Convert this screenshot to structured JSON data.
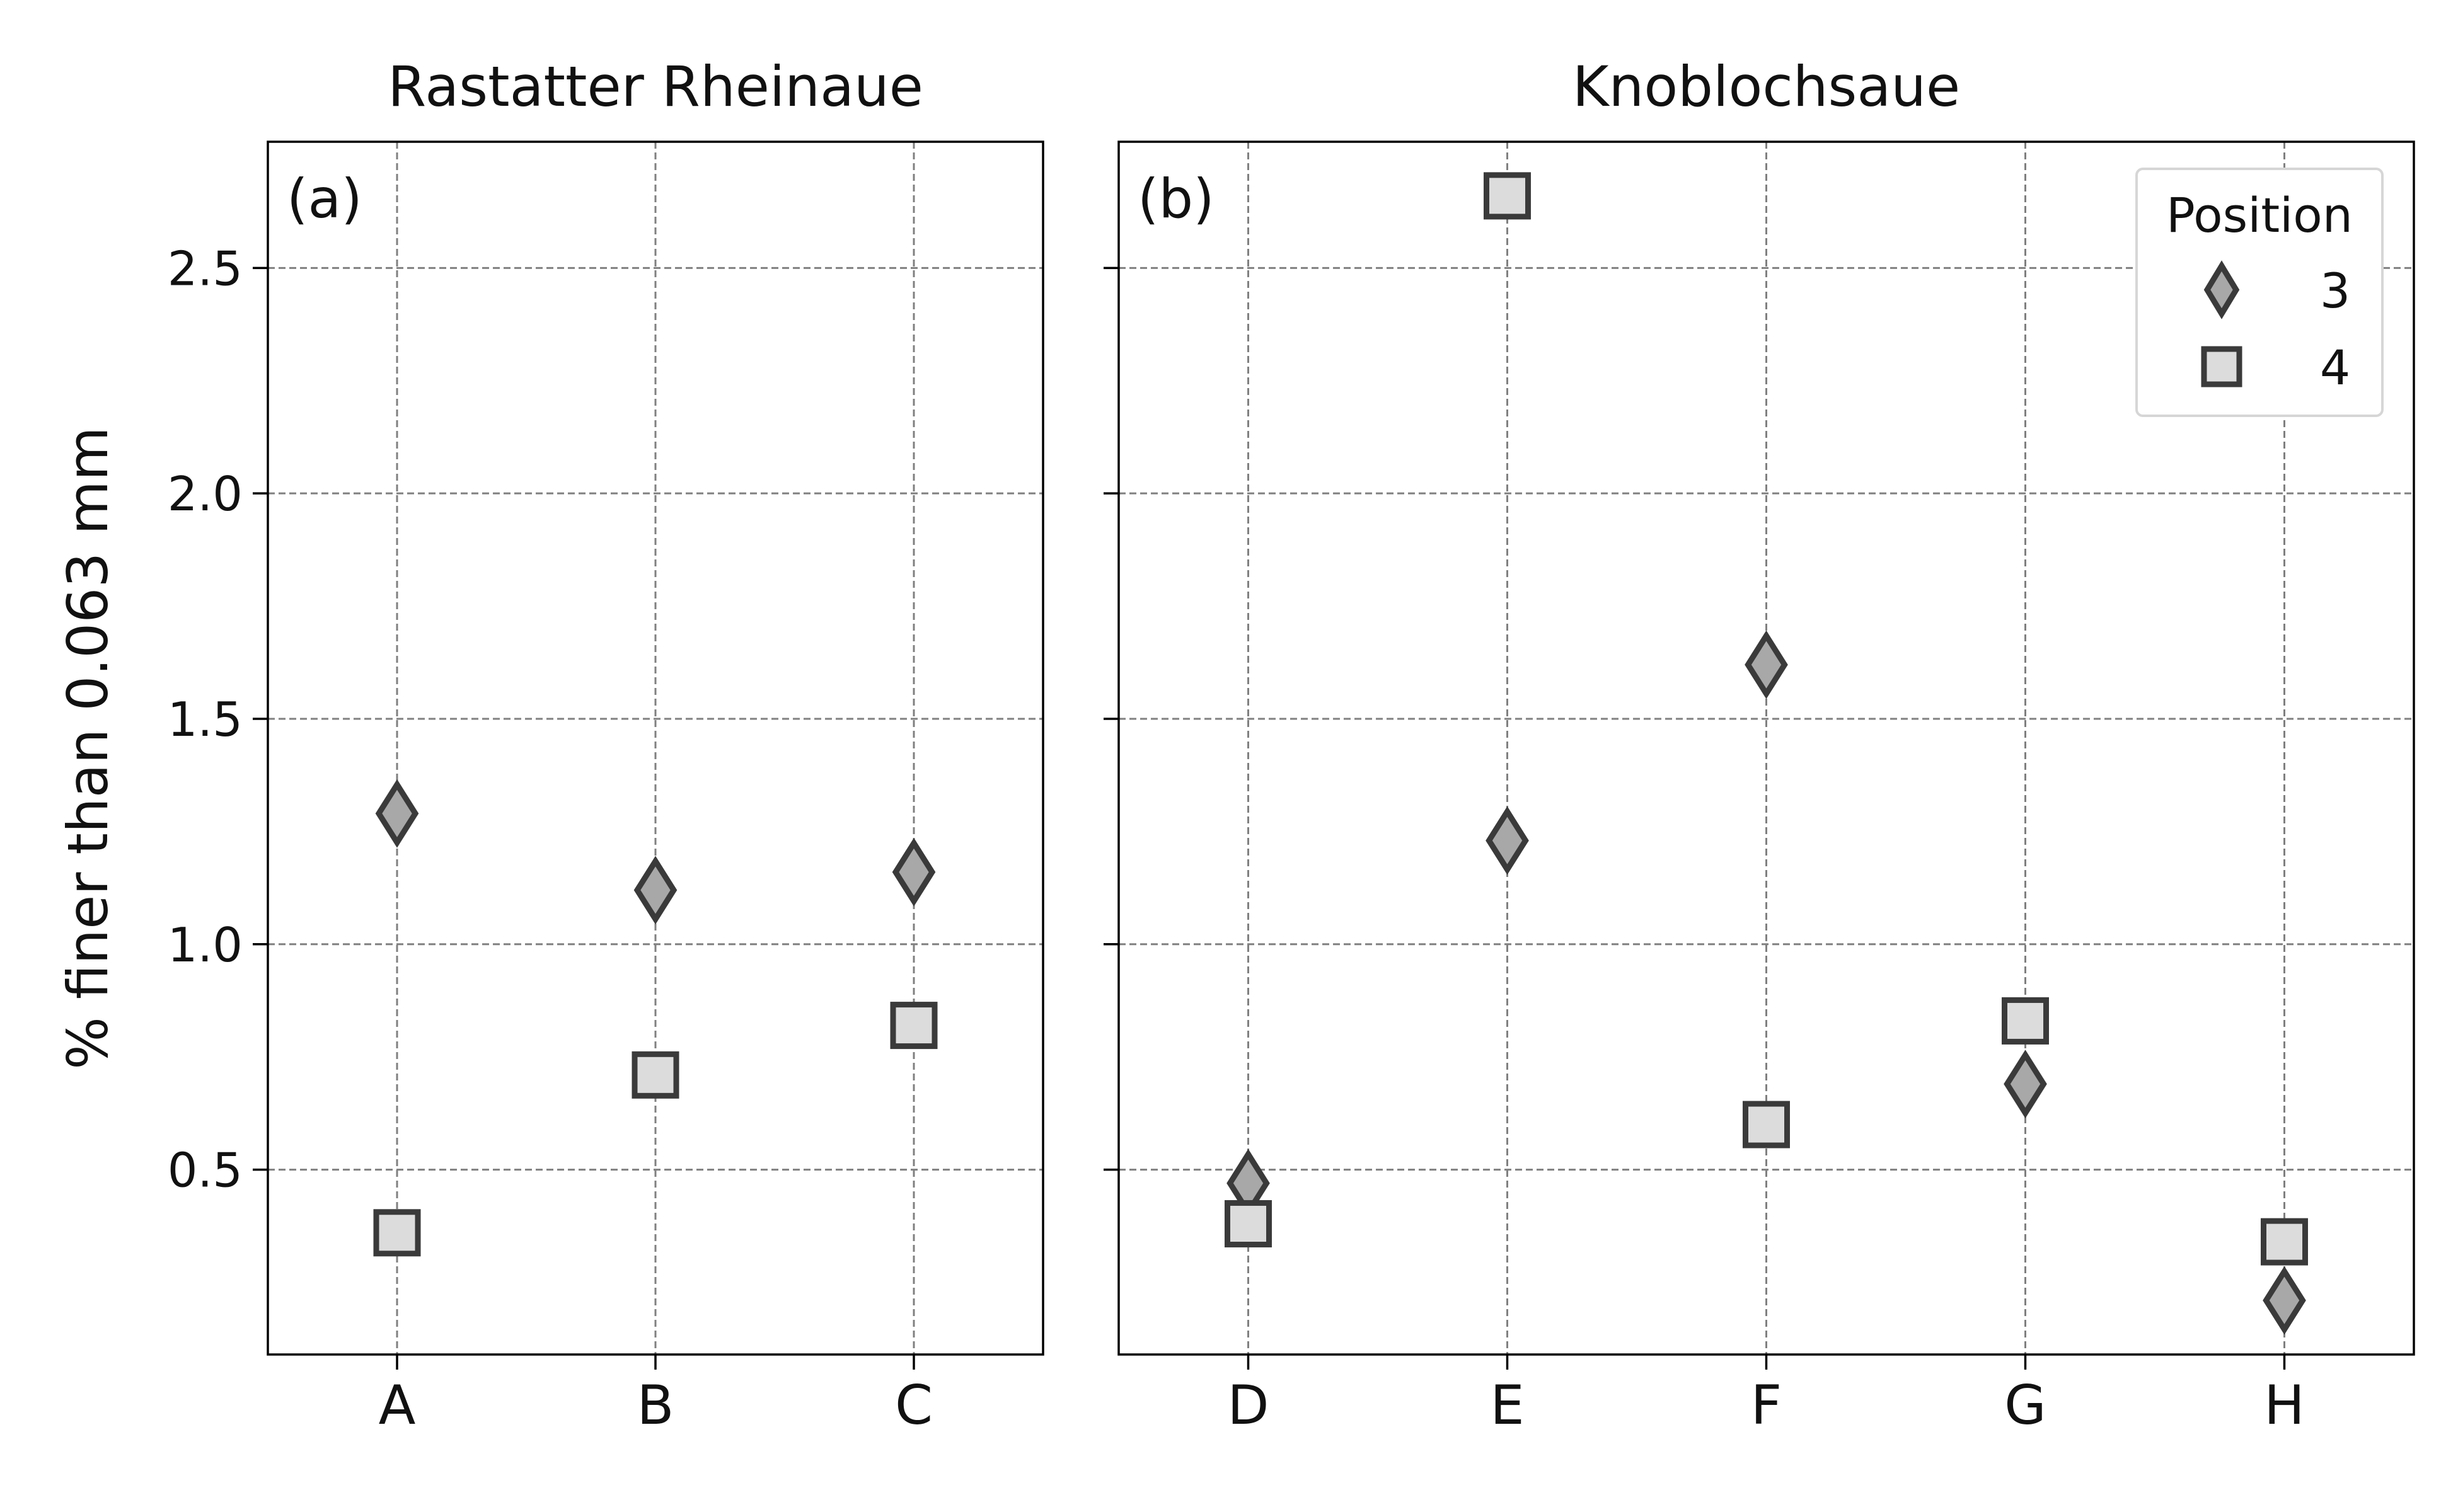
{
  "chart_data": {
    "type": "scatter",
    "ylabel": "% finer than 0.063 mm",
    "ylim": [
      0.09,
      2.78
    ],
    "yticks": [
      0.5,
      1.0,
      1.5,
      2.0,
      2.5
    ],
    "ytick_labels": [
      "0.5",
      "1.0",
      "1.5",
      "2.0",
      "2.5"
    ],
    "grid": true,
    "legend": {
      "title": "Position",
      "placement": "top-right",
      "panel": 1,
      "entries": [
        {
          "label": "3",
          "marker": "diamond"
        },
        {
          "label": "4",
          "marker": "square"
        }
      ]
    },
    "marker_colors": {
      "diamond_fill": "#a8a8a8",
      "square_fill": "#dcdcdc",
      "edge": "#3a3a3a"
    },
    "panels": [
      {
        "title": "Rastatter Rheinaue",
        "tag": "(a)",
        "categories": [
          "A",
          "B",
          "C"
        ],
        "series": [
          {
            "name": "3",
            "marker": "diamond",
            "values": [
              1.29,
              1.12,
              1.16
            ]
          },
          {
            "name": "4",
            "marker": "square",
            "values": [
              0.36,
              0.71,
              0.82
            ]
          }
        ]
      },
      {
        "title": "Knoblochsaue",
        "tag": "(b)",
        "categories": [
          "D",
          "E",
          "F",
          "G",
          "H"
        ],
        "series": [
          {
            "name": "3",
            "marker": "diamond",
            "values": [
              0.47,
              1.23,
              1.62,
              0.69,
              0.21
            ]
          },
          {
            "name": "4",
            "marker": "square",
            "values": [
              0.38,
              2.66,
              0.6,
              0.83,
              0.34
            ]
          }
        ]
      }
    ]
  }
}
